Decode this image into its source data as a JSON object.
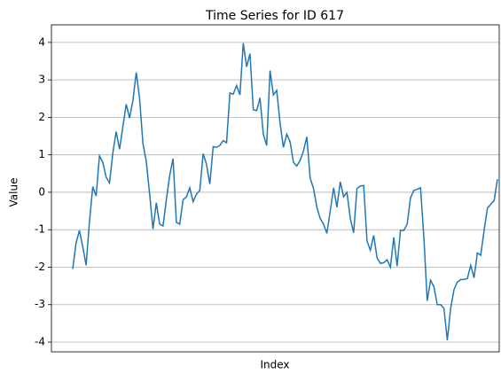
{
  "chart_data": {
    "type": "line",
    "title": "Time Series for ID 617",
    "x_label": "Index",
    "y_label": "Value",
    "series": [
      {
        "name": "Value",
        "color": "#1f77b4",
        "values": [
          -2.05,
          -1.35,
          -1.02,
          -1.45,
          -1.95,
          -0.8,
          0.15,
          -0.1,
          0.97,
          0.8,
          0.4,
          0.25,
          1.05,
          1.62,
          1.15,
          1.75,
          2.35,
          1.98,
          2.45,
          3.2,
          2.5,
          1.3,
          0.82,
          -0.05,
          -0.98,
          -0.28,
          -0.85,
          -0.9,
          -0.2,
          0.45,
          0.9,
          -0.8,
          -0.85,
          -0.2,
          -0.12,
          0.12,
          -0.25,
          -0.05,
          0.05,
          1.03,
          0.75,
          0.22,
          1.22,
          1.2,
          1.25,
          1.38,
          1.32,
          2.65,
          2.62,
          2.85,
          2.6,
          3.98,
          3.35,
          3.7,
          2.2,
          2.18,
          2.52,
          1.55,
          1.25,
          3.25,
          2.6,
          2.72,
          1.85,
          1.2,
          1.55,
          1.35,
          0.8,
          0.7,
          0.85,
          1.1,
          1.48,
          0.38,
          0.1,
          -0.4,
          -0.7,
          -0.85,
          -1.1,
          -0.5,
          0.12,
          -0.4,
          0.28,
          -0.12,
          0.0,
          -0.7,
          -1.08,
          0.1,
          0.17,
          0.18,
          -1.3,
          -1.55,
          -1.15,
          -1.75,
          -1.9,
          -1.88,
          -1.8,
          -2.0,
          -1.2,
          -1.97,
          -1.02,
          -1.02,
          -0.85,
          -0.15,
          0.05,
          0.08,
          0.12,
          -1.2,
          -2.9,
          -2.35,
          -2.52,
          -3.0,
          -3.0,
          -3.1,
          -3.95,
          -3.1,
          -2.6,
          -2.4,
          -2.33,
          -2.33,
          -2.3,
          -1.95,
          -2.28,
          -1.62,
          -1.68,
          -1.02,
          -0.42,
          -0.32,
          -0.22,
          0.35
        ]
      }
    ],
    "ylim": [
      -4.26,
      4.47
    ],
    "yticks": [
      -4,
      -3,
      -2,
      -1,
      0,
      1,
      2,
      3,
      4
    ],
    "grid": true
  }
}
